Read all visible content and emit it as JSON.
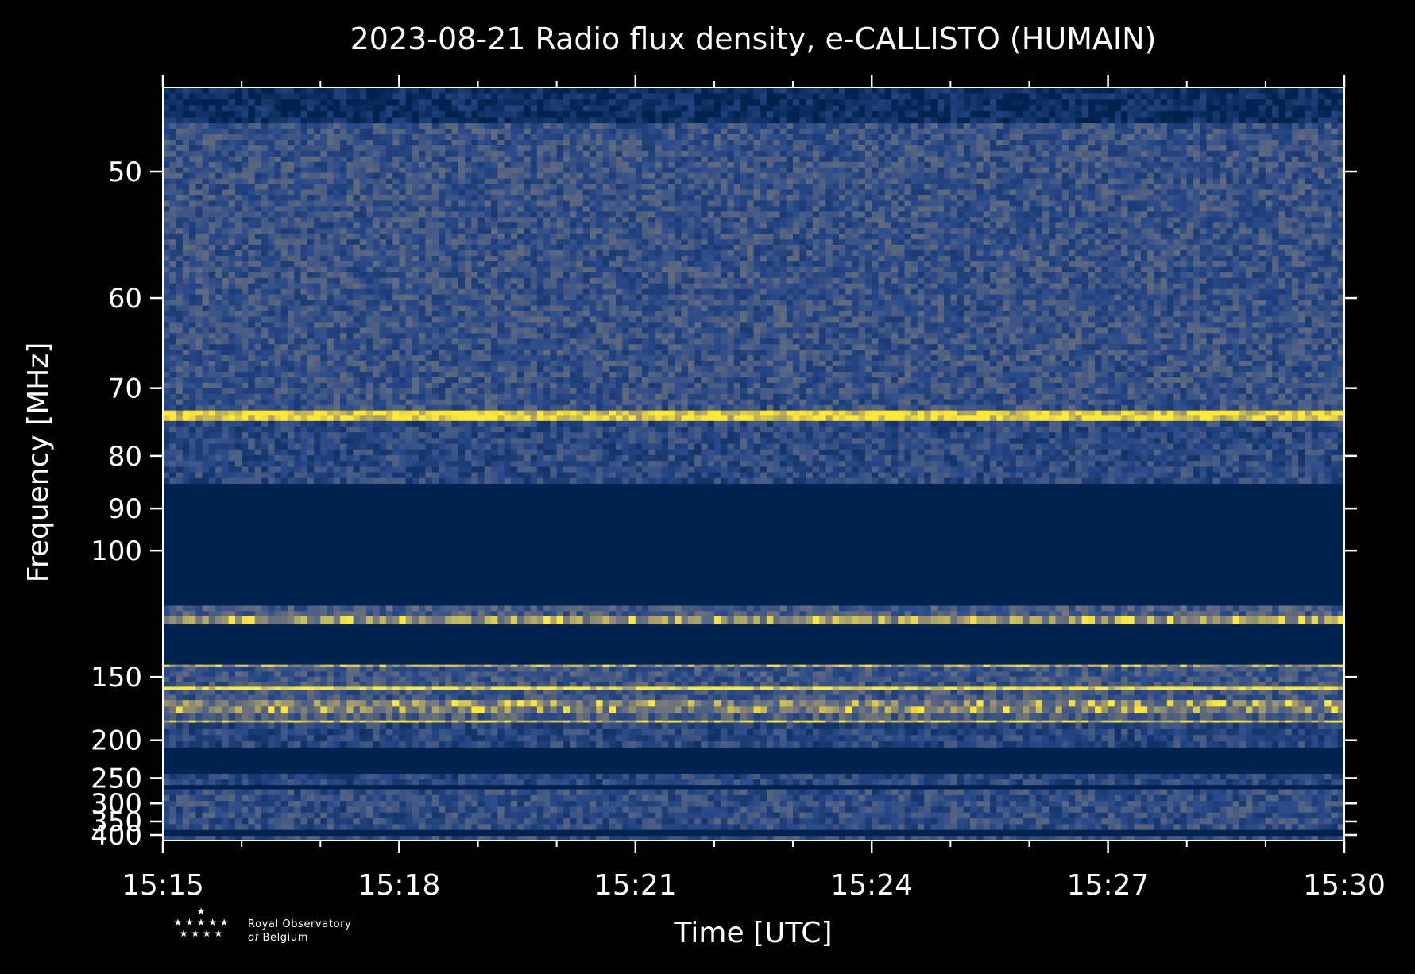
{
  "chart_data": {
    "type": "heatmap",
    "title": "2023-08-21 Radio flux density, e-CALLISTO (HUMAIN)",
    "xlabel": "Time [UTC]",
    "ylabel": "Frequency [MHz]",
    "x_ticks": [
      "15:15",
      "15:18",
      "15:21",
      "15:24",
      "15:27",
      "15:30"
    ],
    "x_range_minutes": [
      0,
      15
    ],
    "y_ticks": [
      50,
      60,
      70,
      80,
      90,
      100,
      150,
      200,
      250,
      300,
      350,
      400
    ],
    "y_range_mhz": [
      45,
      425
    ],
    "y_scale": "reciprocal",
    "colormap": [
      "#00224e",
      "#2a4a8a",
      "#7d7c78",
      "#fee838"
    ],
    "bands": [
      {
        "f_low": 45,
        "f_high": 47,
        "level": 0.1
      },
      {
        "f_low": 47,
        "f_high": 73,
        "level": 0.38
      },
      {
        "f_low": 73,
        "f_high": 74.5,
        "level": 0.92
      },
      {
        "f_low": 74.5,
        "f_high": 85,
        "level": 0.32
      },
      {
        "f_low": 85,
        "f_high": 117,
        "level": 0.0
      },
      {
        "f_low": 117,
        "f_high": 121,
        "level": 0.45
      },
      {
        "f_low": 121,
        "f_high": 124,
        "level": 0.7
      },
      {
        "f_low": 124,
        "f_high": 143,
        "level": 0.0
      },
      {
        "f_low": 143,
        "f_high": 144,
        "level": 0.75
      },
      {
        "f_low": 144,
        "f_high": 156,
        "level": 0.4
      },
      {
        "f_low": 156,
        "f_high": 158,
        "level": 0.95
      },
      {
        "f_low": 158,
        "f_high": 165,
        "level": 0.4
      },
      {
        "f_low": 165,
        "f_high": 175,
        "level": 0.6
      },
      {
        "f_low": 175,
        "f_high": 181,
        "level": 0.45
      },
      {
        "f_low": 181,
        "f_high": 183,
        "level": 0.85
      },
      {
        "f_low": 183,
        "f_high": 208,
        "level": 0.3
      },
      {
        "f_low": 208,
        "f_high": 243,
        "level": 0.0
      },
      {
        "f_low": 243,
        "f_high": 262,
        "level": 0.3
      },
      {
        "f_low": 262,
        "f_high": 270,
        "level": 0.0
      },
      {
        "f_low": 270,
        "f_high": 380,
        "level": 0.35
      },
      {
        "f_low": 380,
        "f_high": 404,
        "level": 0.0
      },
      {
        "f_low": 404,
        "f_high": 425,
        "level": 0.35
      }
    ],
    "grid": false,
    "legend": "none"
  },
  "logo": {
    "line1": "Royal Observatory",
    "line2_italic": "of",
    "line2": "Belgium"
  },
  "colors": {
    "background": "#000000",
    "axes": "#ffffff",
    "text": "#ffffff"
  }
}
